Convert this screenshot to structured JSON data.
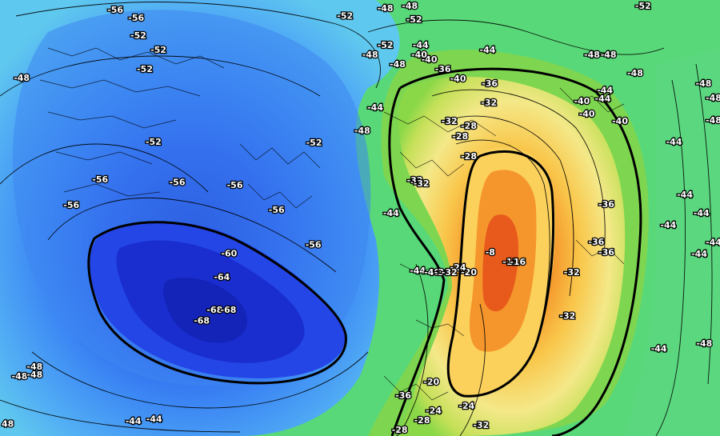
{
  "map": {
    "colors": {
      "ocean_base": "#5fb0f0",
      "cold_core": "#1630d8",
      "warm_core": "#f07020",
      "ridge_edge": "#7ad44a",
      "outer_green": "#58d878",
      "contour": "#000000"
    },
    "labels": [
      {
        "text": "-56",
        "lon": 0.158,
        "lat": 0.022
      },
      {
        "text": "-56",
        "lon": 0.187,
        "lat": 0.04
      },
      {
        "text": "-52",
        "lon": 0.19,
        "lat": 0.081
      },
      {
        "text": "-52",
        "lon": 0.218,
        "lat": 0.114
      },
      {
        "text": "-52",
        "lon": 0.199,
        "lat": 0.158
      },
      {
        "text": "-52",
        "lon": 0.211,
        "lat": 0.325
      },
      {
        "text": "-48",
        "lon": 0.028,
        "lat": 0.178
      },
      {
        "text": "-56",
        "lon": 0.137,
        "lat": 0.411
      },
      {
        "text": "-56",
        "lon": 0.097,
        "lat": 0.47
      },
      {
        "text": "-56",
        "lon": 0.244,
        "lat": 0.417
      },
      {
        "text": "-56",
        "lon": 0.324,
        "lat": 0.424
      },
      {
        "text": "-56",
        "lon": 0.382,
        "lat": 0.481
      },
      {
        "text": "-56",
        "lon": 0.433,
        "lat": 0.561
      },
      {
        "text": "-52",
        "lon": 0.434,
        "lat": 0.327
      },
      {
        "text": "-60",
        "lon": 0.316,
        "lat": 0.581
      },
      {
        "text": "-64",
        "lon": 0.306,
        "lat": 0.635
      },
      {
        "text": "-68",
        "lon": 0.296,
        "lat": 0.71
      },
      {
        "text": "-68",
        "lon": 0.315,
        "lat": 0.71
      },
      {
        "text": "-68",
        "lon": 0.278,
        "lat": 0.735
      },
      {
        "text": "-52",
        "lon": 0.477,
        "lat": 0.036
      },
      {
        "text": "-52",
        "lon": 0.573,
        "lat": 0.044
      },
      {
        "text": "-52",
        "lon": 0.533,
        "lat": 0.103
      },
      {
        "text": "-48",
        "lon": 0.512,
        "lat": 0.125
      },
      {
        "text": "-48",
        "lon": 0.55,
        "lat": 0.147
      },
      {
        "text": "-44",
        "lon": 0.582,
        "lat": 0.103
      },
      {
        "text": "-40",
        "lon": 0.594,
        "lat": 0.136
      },
      {
        "text": "-40",
        "lon": 0.58,
        "lat": 0.125
      },
      {
        "text": "-36",
        "lon": 0.613,
        "lat": 0.158
      },
      {
        "text": "-40",
        "lon": 0.634,
        "lat": 0.18
      },
      {
        "text": "-44",
        "lon": 0.675,
        "lat": 0.114
      },
      {
        "text": "-48",
        "lon": 0.82,
        "lat": 0.125
      },
      {
        "text": "-48",
        "lon": 0.843,
        "lat": 0.125
      },
      {
        "text": "-48",
        "lon": 0.88,
        "lat": 0.167
      },
      {
        "text": "-52",
        "lon": 0.891,
        "lat": 0.013
      },
      {
        "text": "-36",
        "lon": 0.678,
        "lat": 0.191
      },
      {
        "text": "-32",
        "lon": 0.677,
        "lat": 0.235
      },
      {
        "text": "-44",
        "lon": 0.519,
        "lat": 0.246
      },
      {
        "text": "-48",
        "lon": 0.501,
        "lat": 0.299
      },
      {
        "text": "-32",
        "lon": 0.622,
        "lat": 0.277
      },
      {
        "text": "-28",
        "lon": 0.649,
        "lat": 0.288
      },
      {
        "text": "-28",
        "lon": 0.637,
        "lat": 0.312
      },
      {
        "text": "-28",
        "lon": 0.649,
        "lat": 0.358
      },
      {
        "text": "-32",
        "lon": 0.574,
        "lat": 0.413
      },
      {
        "text": "-32",
        "lon": 0.583,
        "lat": 0.42
      },
      {
        "text": "-44",
        "lon": 0.541,
        "lat": 0.488
      },
      {
        "text": "-44",
        "lon": 0.838,
        "lat": 0.206
      },
      {
        "text": "-40",
        "lon": 0.806,
        "lat": 0.231
      },
      {
        "text": "-40",
        "lon": 0.813,
        "lat": 0.261
      },
      {
        "text": "-40",
        "lon": 0.859,
        "lat": 0.277
      },
      {
        "text": "-44",
        "lon": 0.835,
        "lat": 0.226
      },
      {
        "text": "-44",
        "lon": 0.934,
        "lat": 0.325
      },
      {
        "text": "-44",
        "lon": 0.949,
        "lat": 0.446
      },
      {
        "text": "-44",
        "lon": 0.972,
        "lat": 0.488
      },
      {
        "text": "-44",
        "lon": 0.926,
        "lat": 0.516
      },
      {
        "text": "-44",
        "lon": 0.993,
        "lat": 0.555
      },
      {
        "text": "-44",
        "lon": 0.969,
        "lat": 0.582
      },
      {
        "text": "-36",
        "lon": 0.84,
        "lat": 0.468
      },
      {
        "text": "-36",
        "lon": 0.826,
        "lat": 0.554
      },
      {
        "text": "-36",
        "lon": 0.84,
        "lat": 0.578
      },
      {
        "text": "-32",
        "lon": 0.792,
        "lat": 0.624
      },
      {
        "text": "-32",
        "lon": 0.786,
        "lat": 0.724
      },
      {
        "text": "-48",
        "lon": 0.975,
        "lat": 0.191
      },
      {
        "text": "-48",
        "lon": 0.991,
        "lat": 0.224
      },
      {
        "text": "-48",
        "lon": 0.991,
        "lat": 0.275
      },
      {
        "text": "-48",
        "lon": 0.976,
        "lat": 0.787
      },
      {
        "text": "-44",
        "lon": 0.913,
        "lat": 0.799
      },
      {
        "text": "-8",
        "lon": 0.683,
        "lat": 0.578
      },
      {
        "text": "-12",
        "lon": 0.707,
        "lat": 0.6
      },
      {
        "text": "-16",
        "lon": 0.717,
        "lat": 0.6
      },
      {
        "text": "-20",
        "lon": 0.649,
        "lat": 0.624
      },
      {
        "text": "-24",
        "lon": 0.634,
        "lat": 0.613
      },
      {
        "text": "-44",
        "lon": 0.578,
        "lat": 0.62
      },
      {
        "text": "-40",
        "lon": 0.598,
        "lat": 0.624
      },
      {
        "text": "-36",
        "lon": 0.612,
        "lat": 0.624
      },
      {
        "text": "-32",
        "lon": 0.622,
        "lat": 0.624
      },
      {
        "text": "-20",
        "lon": 0.597,
        "lat": 0.875
      },
      {
        "text": "-36",
        "lon": 0.558,
        "lat": 0.906
      },
      {
        "text": "-24",
        "lon": 0.6,
        "lat": 0.941
      },
      {
        "text": "-24",
        "lon": 0.646,
        "lat": 0.93
      },
      {
        "text": "-28",
        "lon": 0.584,
        "lat": 0.963
      },
      {
        "text": "-32",
        "lon": 0.666,
        "lat": 0.974
      },
      {
        "text": "-28",
        "lon": 0.553,
        "lat": 0.985
      },
      {
        "text": "-48",
        "lon": 0.025,
        "lat": 0.862
      },
      {
        "text": "-48",
        "lon": 0.046,
        "lat": 0.84
      },
      {
        "text": "-48",
        "lon": 0.046,
        "lat": 0.859
      },
      {
        "text": "-44",
        "lon": 0.183,
        "lat": 0.965
      },
      {
        "text": "-44",
        "lon": 0.212,
        "lat": 0.961
      },
      {
        "text": "48",
        "lon": 0.008,
        "lat": 0.972
      },
      {
        "text": "-48",
        "lon": 0.533,
        "lat": 0.018
      },
      {
        "text": "-48",
        "lon": 0.567,
        "lat": 0.013
      }
    ]
  }
}
